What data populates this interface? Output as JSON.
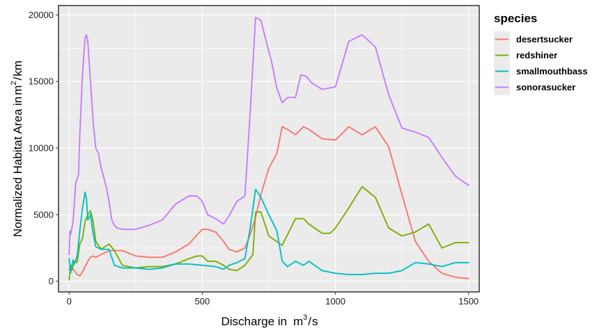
{
  "chart_data": {
    "type": "line",
    "xlabel": "Discharge in",
    "xlabel_unit": {
      "base": "m",
      "sup": "3",
      "rest": "s"
    },
    "ylabel": "Normalized Habitat Area in",
    "ylabel_unit": {
      "base": "m",
      "sup": "2",
      "rest": "km"
    },
    "xlim": [
      -40,
      1540
    ],
    "ylim": [
      -800,
      20700
    ],
    "xticks": [
      0,
      500,
      1000,
      1500
    ],
    "yticks": [
      0,
      5000,
      10000,
      15000,
      20000
    ],
    "grid": true,
    "legend": {
      "title": "species",
      "placement": "right"
    },
    "series": [
      {
        "name": "desertsucker",
        "color": "#F8766D",
        "x": [
          0,
          5,
          10,
          20,
          30,
          40,
          50,
          60,
          70,
          80,
          90,
          100,
          120,
          150,
          200,
          250,
          300,
          350,
          400,
          450,
          500,
          520,
          550,
          580,
          600,
          630,
          660,
          680,
          700,
          720,
          750,
          780,
          800,
          820,
          850,
          880,
          900,
          950,
          1000,
          1050,
          1100,
          1150,
          1200,
          1250,
          1300,
          1350,
          1400,
          1450,
          1500
        ],
        "y": [
          900,
          1100,
          1000,
          800,
          500,
          400,
          700,
          1100,
          1500,
          1800,
          1900,
          1800,
          2000,
          2300,
          2300,
          1900,
          1800,
          1800,
          2200,
          2800,
          3900,
          3900,
          3700,
          3000,
          2400,
          2200,
          2500,
          3500,
          4800,
          6500,
          8500,
          9600,
          11600,
          11400,
          11000,
          11600,
          11400,
          10700,
          10600,
          11600,
          11000,
          11600,
          10100,
          6500,
          3000,
          1500,
          600,
          300,
          200
        ]
      },
      {
        "name": "redshiner",
        "color": "#7CAE00",
        "x": [
          0,
          5,
          10,
          20,
          30,
          40,
          50,
          60,
          70,
          80,
          90,
          100,
          120,
          150,
          170,
          200,
          250,
          300,
          350,
          400,
          450,
          480,
          500,
          520,
          550,
          580,
          600,
          630,
          660,
          690,
          700,
          720,
          750,
          800,
          820,
          850,
          880,
          900,
          950,
          980,
          1000,
          1050,
          1100,
          1150,
          1200,
          1250,
          1300,
          1350,
          1400,
          1450,
          1500
        ],
        "y": [
          100,
          1200,
          800,
          1500,
          1400,
          2800,
          3200,
          4500,
          5000,
          5300,
          4500,
          3000,
          2400,
          2800,
          2300,
          1200,
          1000,
          1100,
          1100,
          1300,
          1700,
          1900,
          1900,
          1500,
          1500,
          1200,
          900,
          800,
          1200,
          2000,
          5200,
          5200,
          3400,
          2700,
          3500,
          4700,
          4700,
          4300,
          3600,
          3600,
          4000,
          5500,
          7100,
          6300,
          4000,
          3400,
          3700,
          4300,
          2500,
          2900,
          2900
        ]
      },
      {
        "name": "smallmouthbass",
        "color": "#00BFC4",
        "x": [
          0,
          5,
          10,
          15,
          20,
          30,
          40,
          50,
          60,
          65,
          70,
          80,
          90,
          100,
          120,
          150,
          170,
          200,
          250,
          300,
          350,
          400,
          450,
          500,
          550,
          580,
          600,
          630,
          660,
          680,
          700,
          720,
          750,
          780,
          800,
          820,
          850,
          880,
          900,
          950,
          1000,
          1050,
          1100,
          1150,
          1200,
          1250,
          1300,
          1350,
          1400,
          1450,
          1500
        ],
        "y": [
          1700,
          600,
          1200,
          1600,
          1300,
          1900,
          3800,
          5500,
          6700,
          6200,
          4600,
          5000,
          3600,
          2600,
          2400,
          2400,
          1200,
          1000,
          1000,
          900,
          1000,
          1300,
          1300,
          1200,
          1100,
          900,
          1200,
          1400,
          1700,
          4000,
          6900,
          6300,
          5000,
          3800,
          1500,
          1100,
          1500,
          1200,
          1500,
          800,
          600,
          500,
          500,
          600,
          600,
          800,
          1400,
          1300,
          1100,
          1400,
          1400
        ]
      },
      {
        "name": "sonorasucker",
        "color": "#C77CFF",
        "x": [
          0,
          3,
          6,
          10,
          15,
          20,
          25,
          30,
          35,
          40,
          50,
          60,
          65,
          70,
          80,
          90,
          100,
          110,
          120,
          130,
          140,
          150,
          160,
          170,
          180,
          200,
          250,
          300,
          350,
          400,
          450,
          480,
          500,
          520,
          550,
          580,
          600,
          630,
          660,
          680,
          700,
          720,
          740,
          760,
          780,
          800,
          820,
          850,
          870,
          890,
          910,
          950,
          1000,
          1050,
          1100,
          1150,
          1200,
          1250,
          1300,
          1350,
          1400,
          1450,
          1500
        ],
        "y": [
          2000,
          3800,
          3500,
          4000,
          4500,
          6000,
          7400,
          7700,
          8000,
          11000,
          15500,
          18300,
          18500,
          18000,
          15000,
          12000,
          10000,
          9600,
          8500,
          7800,
          7000,
          6000,
          4600,
          4200,
          4000,
          3900,
          3900,
          4200,
          4600,
          5800,
          6400,
          6400,
          6000,
          5000,
          4700,
          4300,
          4900,
          6000,
          6400,
          12700,
          19800,
          19600,
          18000,
          16500,
          14500,
          13400,
          13800,
          13800,
          15500,
          15400,
          14900,
          14400,
          14600,
          18000,
          18500,
          17600,
          14000,
          11500,
          11200,
          10800,
          9300,
          7900,
          7200
        ]
      }
    ]
  }
}
